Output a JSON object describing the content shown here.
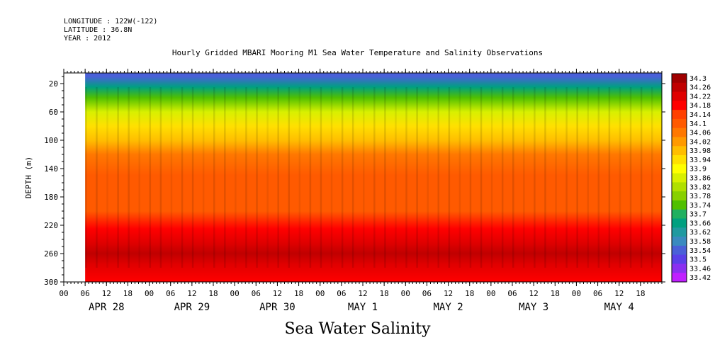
{
  "header": {
    "longitude": "LONGITUDE : 122W(-122)",
    "latitude": "LATITUDE : 36.8N",
    "year": "YEAR : 2012"
  },
  "chart_data": {
    "type": "heatmap",
    "title": "Hourly Gridded MBARI Mooring M1 Sea Water Temperature and Salinity Observations",
    "xlabel": "Sea Water Salinity",
    "ylabel": "DEPTH (m)",
    "y_ticks": [
      20,
      60,
      100,
      140,
      180,
      220,
      260,
      300
    ],
    "ylim": [
      300,
      5
    ],
    "x_hour_ticks": [
      "00",
      "06",
      "12",
      "18",
      "00",
      "06",
      "12",
      "18",
      "00",
      "06",
      "12",
      "18",
      "00",
      "06",
      "12",
      "18",
      "00",
      "06",
      "12",
      "18",
      "00",
      "06",
      "12",
      "18",
      "00",
      "06",
      "12",
      "18"
    ],
    "x_date_labels": [
      "APR 28",
      "APR 29",
      "APR 30",
      "MAY 1",
      "MAY 2",
      "MAY 3",
      "MAY 4"
    ],
    "xlim_hours_from_apr28_00": [
      -12,
      156
    ],
    "data_start_hours_from_apr28_00": -6,
    "colorbar_levels": [
      "34.3",
      "34.26",
      "34.22",
      "34.18",
      "34.14",
      "34.1",
      "34.06",
      "34.02",
      "33.98",
      "33.94",
      "33.9",
      "33.86",
      "33.82",
      "33.78",
      "33.74",
      "33.7",
      "33.66",
      "33.62",
      "33.58",
      "33.54",
      "33.5",
      "33.46",
      "33.42"
    ],
    "colorbar_colors": [
      "#a00000",
      "#c00000",
      "#e00000",
      "#ff0000",
      "#ff4000",
      "#ff5a00",
      "#ff7800",
      "#ff9a00",
      "#ffbe00",
      "#ffe000",
      "#ffff00",
      "#d8f000",
      "#b0e000",
      "#88d000",
      "#50c000",
      "#20b060",
      "#00a080",
      "#209aa0",
      "#3a8ac0",
      "#4a60d8",
      "#5a40e8",
      "#8a30f0",
      "#c020ff"
    ],
    "depth_profile": [
      {
        "depth": 10,
        "salinity": 33.55
      },
      {
        "depth": 25,
        "salinity": 33.66
      },
      {
        "depth": 40,
        "salinity": 33.74
      },
      {
        "depth": 60,
        "salinity": 33.86
      },
      {
        "depth": 80,
        "salinity": 33.94
      },
      {
        "depth": 100,
        "salinity": 33.99
      },
      {
        "depth": 120,
        "salinity": 34.06
      },
      {
        "depth": 150,
        "salinity": 34.12
      },
      {
        "depth": 180,
        "salinity": 34.1
      },
      {
        "depth": 200,
        "salinity": 34.13
      },
      {
        "depth": 225,
        "salinity": 34.18
      },
      {
        "depth": 245,
        "salinity": 34.24
      },
      {
        "depth": 260,
        "salinity": 34.27
      },
      {
        "depth": 275,
        "salinity": 34.24
      },
      {
        "depth": 300,
        "salinity": 34.2
      }
    ]
  }
}
